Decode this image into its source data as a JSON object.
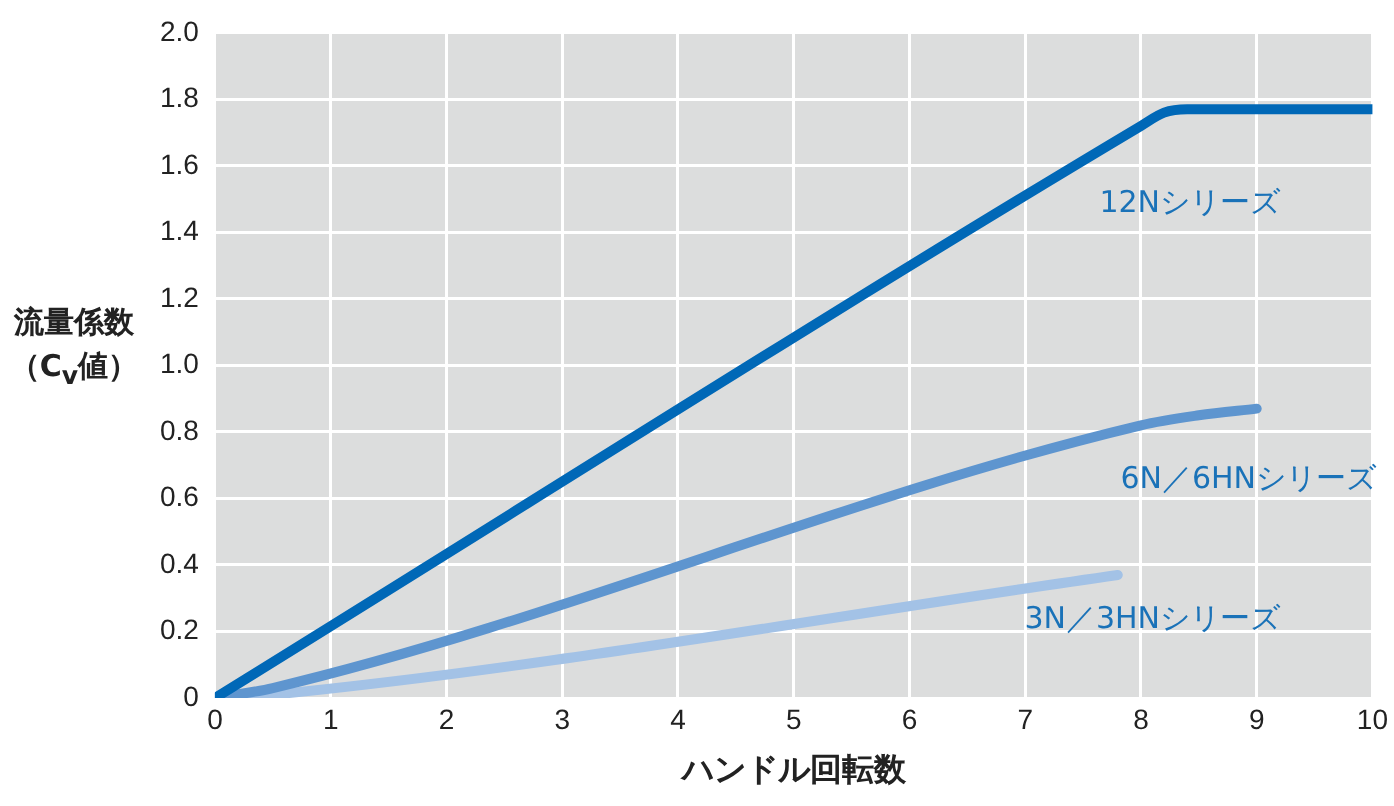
{
  "chart_data": {
    "type": "line",
    "xlabel": "ハンドル回転数",
    "ylabel": "流量係数（C$_{v}$値）",
    "xlim": [
      0,
      10
    ],
    "xticks": [
      0,
      1,
      2,
      3,
      4,
      5,
      6,
      7,
      8,
      9,
      10
    ],
    "ylim": [
      0,
      2
    ],
    "yticks": [
      0,
      {
        "value": 0.2,
        "label": "0.2"
      },
      {
        "value": 0.4,
        "label": "0.4"
      },
      {
        "value": 0.6,
        "label": "0.6"
      },
      {
        "value": 0.8,
        "label": "0.8"
      },
      {
        "value": 1,
        "label": "1.0"
      },
      {
        "value": 1.2,
        "label": "1.2"
      },
      {
        "value": 1.4,
        "label": "1.4"
      },
      {
        "value": 1.6,
        "label": "1.6"
      },
      {
        "value": 1.8,
        "label": "1.8"
      },
      {
        "value": 2,
        "label": "2.0"
      }
    ],
    "grid": true,
    "marker": "none",
    "line_style": "solid",
    "series": [
      {
        "name": "12Nシリーズ",
        "color": "#0068b7",
        "x": [
          0,
          8,
          8.2,
          8.4,
          8.7,
          10
        ],
        "values": [
          0,
          1.72,
          1.76,
          1.77,
          1.77,
          1.77
        ]
      },
      {
        "name": "6N／6HNシリーズ",
        "color": "#5e95cf",
        "x": [
          0,
          0.5,
          8,
          8.5,
          9
        ],
        "values": [
          0,
          0.03,
          0.82,
          0.85,
          0.87
        ]
      },
      {
        "name": "3N／3HNシリーズ",
        "color": "#a3c2e6",
        "x": [
          0,
          0.5,
          7.8
        ],
        "values": [
          0,
          0.01,
          0.37
        ]
      }
    ]
  }
}
